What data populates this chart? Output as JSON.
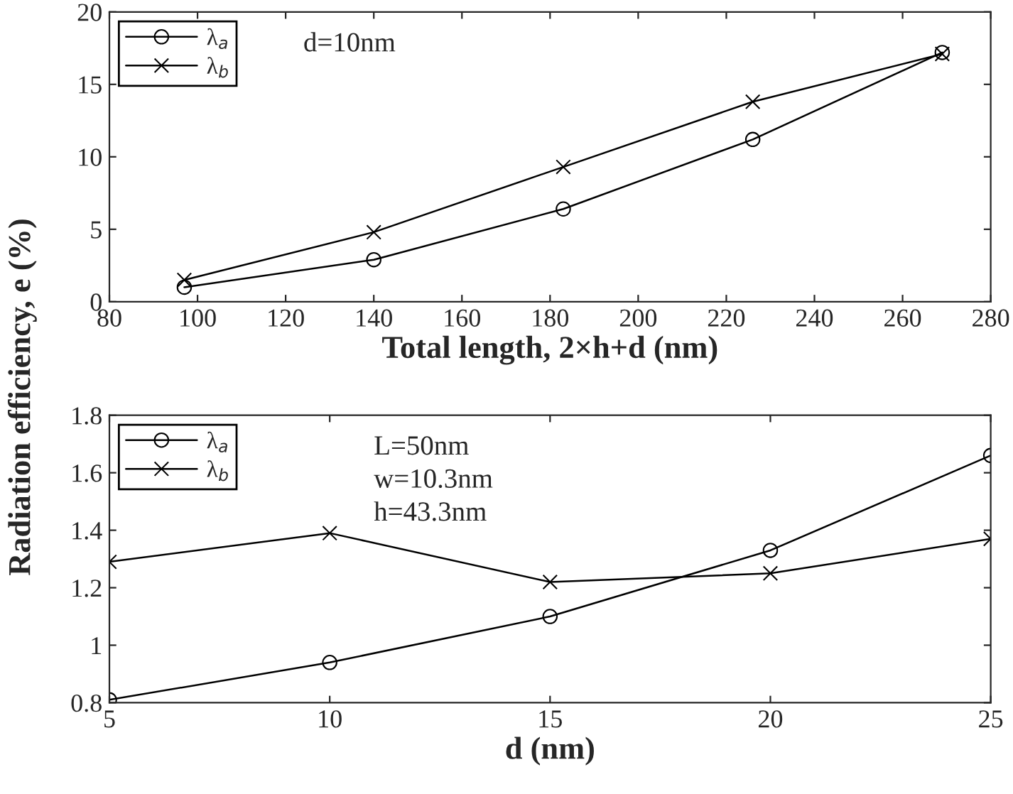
{
  "chart_data": [
    {
      "type": "line",
      "xlabel": "Total length, 2×h+d (nm)",
      "ylabel": "Radiation efficiency, e (%)",
      "x": [
        97,
        140,
        183,
        226,
        269
      ],
      "series": [
        {
          "name": "λ$_{a}$",
          "color": "#000000",
          "marker": "circle",
          "values": [
            1.0,
            2.9,
            6.4,
            11.2,
            17.2
          ]
        },
        {
          "name": "λ$_{b}$",
          "color": "#000000",
          "marker": "cross",
          "values": [
            1.5,
            4.8,
            9.3,
            13.8,
            17.1
          ]
        }
      ],
      "xlim": [
        80,
        280
      ],
      "xticks": [
        80,
        100,
        120,
        140,
        160,
        180,
        200,
        220,
        240,
        260,
        280
      ],
      "ylim": [
        0,
        20
      ],
      "yticks": [
        0,
        5,
        10,
        15,
        20
      ],
      "annotations": [
        "d=10nm"
      ],
      "legend": "top left",
      "grid": false,
      "line_style": "solid"
    },
    {
      "type": "line",
      "xlabel": "d (nm)",
      "x": [
        5,
        10,
        15,
        20,
        25
      ],
      "series": [
        {
          "name": "λ$_{a}$",
          "color": "#000000",
          "marker": "circle",
          "values": [
            0.81,
            0.94,
            1.1,
            1.33,
            1.66
          ]
        },
        {
          "name": "λ$_{b}$",
          "color": "#000000",
          "marker": "cross",
          "values": [
            1.29,
            1.39,
            1.22,
            1.25,
            1.37
          ]
        }
      ],
      "xlim": [
        5,
        25
      ],
      "xticks": [
        5,
        10,
        15,
        20,
        25
      ],
      "ylim": [
        0.8,
        1.8
      ],
      "yticks": [
        0.8,
        1,
        1.2,
        1.4,
        1.6,
        1.8
      ],
      "annotations": [
        "L=50nm",
        "w=10.3nm",
        "h=43.3nm"
      ],
      "legend": "top left",
      "grid": false,
      "line_style": "solid"
    }
  ]
}
